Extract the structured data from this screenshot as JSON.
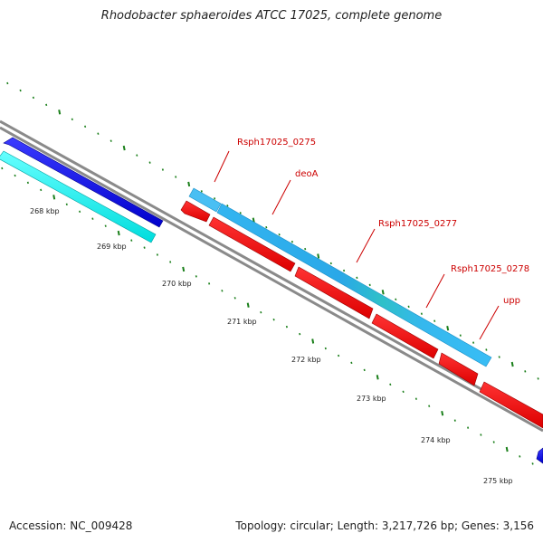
{
  "title": "Rhodobacter sphaeroides ATCC 17025, complete genome",
  "footer": {
    "accession": "Accession: NC_009428",
    "summary": "Topology: circular; Length: 3,217,726 bp; Genes: 3,156"
  },
  "colors": {
    "backbone": "#8a8a8a",
    "tick": "#1a7f1a",
    "forward_gene": "#0000ee",
    "forward_gene_light": "#33ddff",
    "reverse_gene": "#ee0000",
    "cds_blue": "#2eb6f0",
    "label": "#cc0000"
  },
  "kbp_labels": [
    "268 kbp",
    "269 kbp",
    "270 kbp",
    "271 kbp",
    "272 kbp",
    "273 kbp",
    "274 kbp",
    "275 kbp"
  ],
  "gene_labels": [
    "Rsph17025_0275",
    "deoA",
    "Rsph17025_0277",
    "Rsph17025_0278",
    "upp"
  ]
}
